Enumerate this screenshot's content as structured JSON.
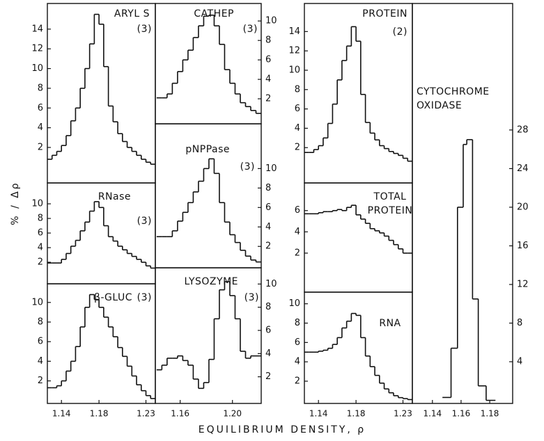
{
  "chart_data": [
    {
      "type": "histogram",
      "label": [
        "ARYL S"
      ],
      "note": "(3)",
      "yaxis_side": "left",
      "color": "#111",
      "xlim": [
        1.125,
        1.24
      ],
      "ylim": [
        -1.6,
        16.6
      ],
      "yticks": [
        2,
        4,
        6,
        8,
        10,
        12,
        14
      ],
      "bins": [
        1.125,
        1.13,
        1.135,
        1.14,
        1.145,
        1.15,
        1.155,
        1.16,
        1.165,
        1.17,
        1.175,
        1.18,
        1.185,
        1.19,
        1.195,
        1.2,
        1.205,
        1.21,
        1.215,
        1.22,
        1.225,
        1.23,
        1.235,
        1.24
      ],
      "values": [
        0.8,
        1.2,
        1.6,
        2.2,
        3.2,
        4.7,
        6.0,
        8.0,
        10.0,
        12.5,
        15.5,
        14.5,
        10.2,
        6.2,
        4.6,
        3.4,
        2.6,
        2.0,
        1.6,
        1.2,
        0.8,
        0.5,
        0.3
      ]
    },
    {
      "type": "histogram",
      "label": [
        "RNase"
      ],
      "note": "(3)",
      "yaxis_side": "left",
      "color": "#111",
      "xlim": [
        1.125,
        1.24
      ],
      "ylim": [
        -0.95,
        12.86
      ],
      "yticks": [
        2,
        4,
        6,
        8,
        10
      ],
      "bins": [
        1.125,
        1.13,
        1.135,
        1.14,
        1.145,
        1.15,
        1.155,
        1.16,
        1.165,
        1.17,
        1.175,
        1.18,
        1.185,
        1.19,
        1.195,
        1.2,
        1.205,
        1.21,
        1.215,
        1.22,
        1.225,
        1.23,
        1.235,
        1.24
      ],
      "values": [
        1.9,
        1.9,
        1.9,
        2.4,
        3.2,
        4.2,
        5.0,
        6.3,
        7.5,
        9.0,
        10.3,
        9.5,
        7.0,
        5.5,
        4.9,
        4.2,
        3.7,
        3.2,
        2.8,
        2.4,
        2.0,
        1.5,
        1.2
      ]
    },
    {
      "type": "histogram",
      "label": [
        "β-GLUC"
      ],
      "note": "(3)",
      "yaxis_side": "left",
      "color": "#111",
      "xlim": [
        1.125,
        1.24
      ],
      "ylim": [
        -0.3,
        11.9
      ],
      "yticks": [
        2,
        4,
        6,
        8,
        10
      ],
      "xticks": [
        1.14,
        1.18,
        1.23
      ],
      "bins": [
        1.125,
        1.13,
        1.135,
        1.14,
        1.145,
        1.15,
        1.155,
        1.16,
        1.165,
        1.17,
        1.175,
        1.18,
        1.185,
        1.19,
        1.195,
        1.2,
        1.205,
        1.21,
        1.215,
        1.22,
        1.225,
        1.23,
        1.235,
        1.24
      ],
      "values": [
        1.3,
        1.3,
        1.5,
        2.0,
        3.0,
        4.0,
        5.5,
        7.5,
        9.5,
        10.8,
        10.3,
        9.5,
        8.5,
        7.5,
        6.5,
        5.4,
        4.5,
        3.5,
        2.5,
        1.6,
        1.0,
        0.5,
        0.2
      ]
    },
    {
      "type": "histogram",
      "label": [
        "CATHEP"
      ],
      "note": "(3)",
      "yaxis_side": "right",
      "color": "#111",
      "xlim": [
        1.141,
        1.222
      ],
      "ylim": [
        -0.57,
        11.8
      ],
      "yticks": [
        2,
        4,
        6,
        8,
        10
      ],
      "bins": [
        1.142,
        1.146,
        1.15,
        1.154,
        1.158,
        1.162,
        1.166,
        1.17,
        1.174,
        1.178,
        1.182,
        1.186,
        1.19,
        1.194,
        1.198,
        1.202,
        1.206,
        1.21,
        1.214,
        1.218,
        1.222
      ],
      "values": [
        2.1,
        2.1,
        2.5,
        3.6,
        4.8,
        6.0,
        7.0,
        8.3,
        9.5,
        10.5,
        10.6,
        9.5,
        7.6,
        5.0,
        3.6,
        2.5,
        1.6,
        1.2,
        0.8,
        0.5
      ]
    },
    {
      "type": "histogram",
      "label": [
        "pNPPase"
      ],
      "note": "(3)",
      "yaxis_side": "right",
      "color": "#111",
      "xlim": [
        1.141,
        1.222
      ],
      "ylim": [
        -0.2,
        14.6
      ],
      "yticks": [
        2,
        4,
        6,
        8,
        10
      ],
      "bins": [
        1.142,
        1.146,
        1.15,
        1.154,
        1.158,
        1.162,
        1.166,
        1.17,
        1.174,
        1.178,
        1.182,
        1.186,
        1.19,
        1.194,
        1.198,
        1.202,
        1.206,
        1.21,
        1.214,
        1.218,
        1.222
      ],
      "values": [
        3.0,
        3.0,
        3.0,
        3.6,
        4.6,
        5.5,
        6.5,
        7.6,
        8.7,
        10.0,
        11.0,
        9.5,
        6.5,
        4.5,
        3.2,
        2.4,
        1.6,
        1.0,
        0.6,
        0.4
      ]
    },
    {
      "type": "histogram",
      "label": [
        "LYSOZYME"
      ],
      "note": "(3)",
      "yaxis_side": "right",
      "color": "#111",
      "xlim": [
        1.141,
        1.222
      ],
      "ylim": [
        -0.3,
        11.4
      ],
      "yticks": [
        2,
        4,
        6,
        8,
        10
      ],
      "xticks": [
        1.16,
        {
          "value": 1.2,
          "label": "1.20"
        }
      ],
      "bins": [
        1.142,
        1.146,
        1.15,
        1.154,
        1.158,
        1.162,
        1.166,
        1.17,
        1.174,
        1.178,
        1.182,
        1.186,
        1.19,
        1.194,
        1.198,
        1.202,
        1.206,
        1.21,
        1.214,
        1.218,
        1.222
      ],
      "values": [
        2.6,
        3.0,
        3.6,
        3.6,
        3.8,
        3.4,
        3.0,
        1.8,
        1.0,
        1.5,
        3.5,
        7.0,
        9.5,
        10.2,
        9.0,
        7.0,
        4.2,
        3.6,
        3.8,
        3.8
      ]
    },
    {
      "type": "histogram",
      "label": [
        "PROTEIN"
      ],
      "note": "(2)",
      "yaxis_side": "left",
      "color": "#111",
      "xlim": [
        1.125,
        1.24
      ],
      "ylim": [
        -1.65,
        16.9
      ],
      "yticks": [
        2,
        4,
        6,
        8,
        10,
        12,
        14
      ],
      "bins": [
        1.125,
        1.13,
        1.135,
        1.14,
        1.145,
        1.15,
        1.155,
        1.16,
        1.165,
        1.17,
        1.175,
        1.18,
        1.185,
        1.19,
        1.195,
        1.2,
        1.205,
        1.21,
        1.215,
        1.22,
        1.225,
        1.23,
        1.235,
        1.24
      ],
      "values": [
        1.5,
        1.5,
        1.8,
        2.2,
        3.0,
        4.5,
        6.5,
        9.0,
        11.0,
        12.5,
        14.5,
        13.0,
        7.5,
        4.6,
        3.5,
        2.8,
        2.2,
        1.9,
        1.6,
        1.4,
        1.2,
        0.9,
        0.6
      ]
    },
    {
      "type": "histogram",
      "label": [
        "TOTAL",
        "PROTEIN"
      ],
      "yaxis_side": "left",
      "color": "#111",
      "xlim": [
        1.125,
        1.24
      ],
      "ylim": [
        -1.67,
        8.6
      ],
      "yticks": [
        2,
        4,
        6
      ],
      "bins": [
        1.125,
        1.13,
        1.135,
        1.14,
        1.145,
        1.15,
        1.155,
        1.16,
        1.165,
        1.17,
        1.175,
        1.18,
        1.185,
        1.19,
        1.195,
        1.2,
        1.205,
        1.21,
        1.215,
        1.22,
        1.225,
        1.23,
        1.235,
        1.24
      ],
      "values": [
        5.7,
        5.7,
        5.7,
        5.8,
        5.9,
        5.9,
        6.0,
        6.1,
        6.0,
        6.3,
        6.5,
        5.6,
        5.2,
        4.8,
        4.3,
        4.1,
        3.9,
        3.6,
        3.2,
        2.8,
        2.4,
        2.0,
        2.0
      ]
    },
    {
      "type": "histogram",
      "label": [
        "RNA"
      ],
      "yaxis_side": "left",
      "color": "#111",
      "xlim": [
        1.125,
        1.24
      ],
      "ylim": [
        -0.3,
        11.2
      ],
      "yticks": [
        2,
        4,
        6,
        8,
        10
      ],
      "xticks": [
        1.14,
        1.18,
        1.23
      ],
      "bins": [
        1.125,
        1.13,
        1.135,
        1.14,
        1.145,
        1.15,
        1.155,
        1.16,
        1.165,
        1.17,
        1.175,
        1.18,
        1.185,
        1.19,
        1.195,
        1.2,
        1.205,
        1.21,
        1.215,
        1.22,
        1.225,
        1.23,
        1.235,
        1.24
      ],
      "values": [
        5.0,
        5.0,
        5.0,
        5.1,
        5.2,
        5.4,
        5.8,
        6.5,
        7.5,
        8.2,
        9.0,
        8.8,
        6.5,
        4.6,
        3.5,
        2.6,
        1.8,
        1.2,
        0.8,
        0.5,
        0.3,
        0.2,
        0.1
      ]
    },
    {
      "type": "histogram",
      "label": [
        "CYTOCHROME",
        "OXIDASE"
      ],
      "yaxis_side": "right",
      "color": "#111",
      "xlim": [
        1.126,
        1.196
      ],
      "ylim": [
        -0.32,
        41.1
      ],
      "yticks": [
        4,
        8,
        12,
        16,
        20,
        24,
        28
      ],
      "xticks": [
        1.14,
        1.16,
        1.18
      ],
      "bins": [
        1.147,
        1.153,
        1.1575,
        1.1615,
        1.164,
        1.168,
        1.172,
        1.1775,
        1.184
      ],
      "values": [
        0.3,
        5.4,
        20,
        26.5,
        27,
        10.5,
        1.5,
        0
      ]
    }
  ],
  "ylabel": "% / Δρ",
  "xlabel": "EQUILIBRIUM DENSITY, ρ"
}
